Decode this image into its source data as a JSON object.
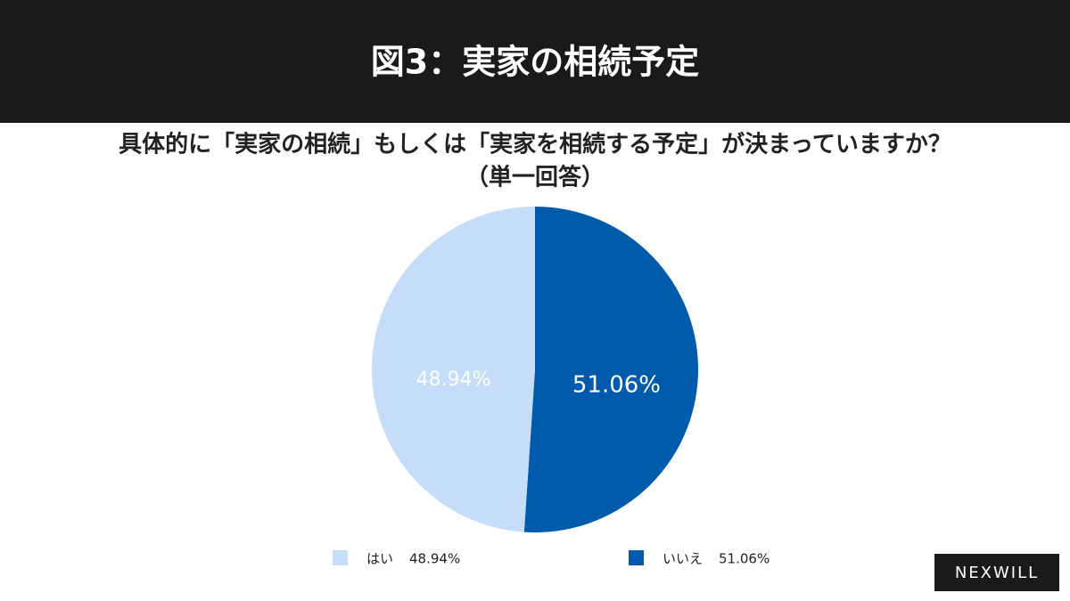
{
  "header": {
    "title": "図3：実家の相続予定"
  },
  "logo": "NEXWILL",
  "chart_data": {
    "type": "pie",
    "title": "具体的に「実家の相続」もしくは「実家を相続する予定」が決まっていますか？",
    "subtitle": "（単一回答）",
    "categories": [
      "はい",
      "いいえ"
    ],
    "values": [
      48.94,
      51.06
    ],
    "value_labels": [
      "48.94%",
      "51.06%"
    ],
    "colors": [
      "#c5ddf9",
      "#005bac"
    ]
  }
}
